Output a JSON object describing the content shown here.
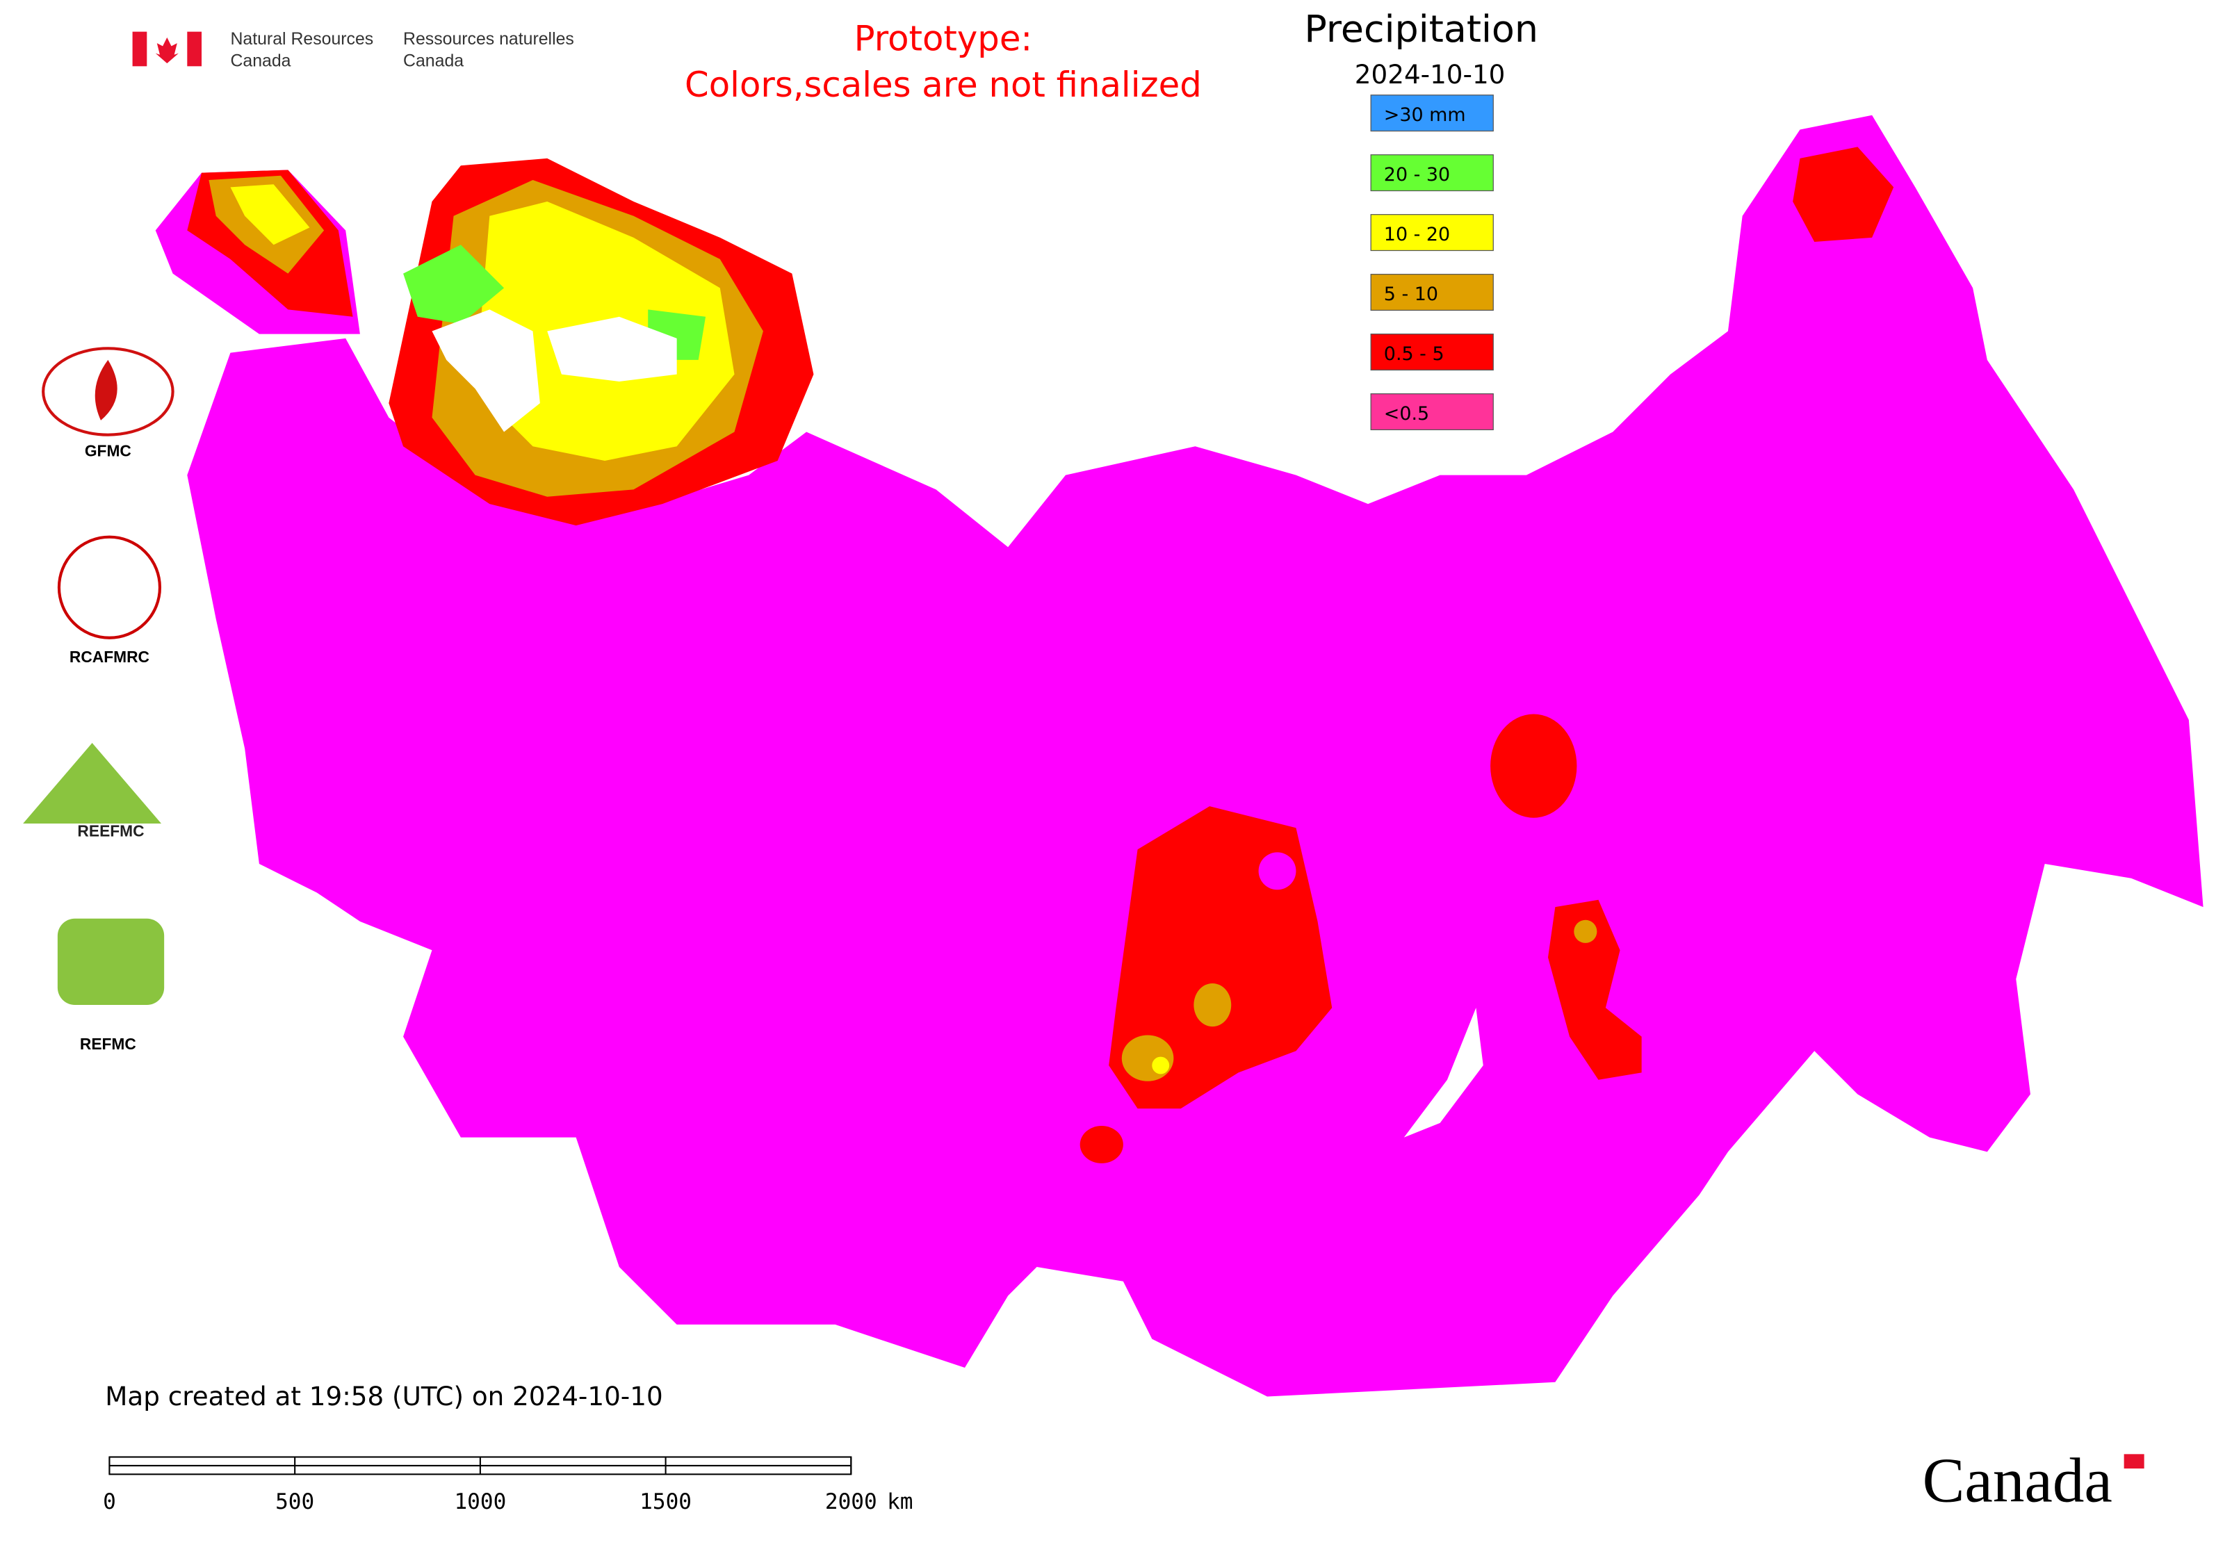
{
  "header": {
    "agency_en": [
      "Natural Resources",
      "Canada"
    ],
    "agency_fr": [
      "Ressources naturelles",
      "Canada"
    ]
  },
  "notice": [
    "Prototype:",
    "Colors,scales are not finalized"
  ],
  "legend": {
    "title": "Precipitation",
    "date": "2024-10-10",
    "items": [
      {
        "label": ">30 mm",
        "color": "#3399ff"
      },
      {
        "label": "20 - 30",
        "color": "#66ff33"
      },
      {
        "label": "10 - 20",
        "color": "#ffff00"
      },
      {
        "label": "5 - 10",
        "color": "#e0a000"
      },
      {
        "label": "0.5 - 5",
        "color": "#ff0000"
      },
      {
        "label": "<0.5",
        "color": "#ff3399"
      }
    ]
  },
  "logos": {
    "gfmc": "GFMC",
    "rcafmrc": "RCAFMRC",
    "reefmc_mark": "REEFMC",
    "refmc": "REFMC"
  },
  "footer": "Map created at 19:58 (UTC) on 2024-10-10",
  "scale_bar": {
    "ticks": [
      0,
      500,
      1000,
      1500,
      2000
    ],
    "unit": "km"
  },
  "wordmark": "Canada"
}
